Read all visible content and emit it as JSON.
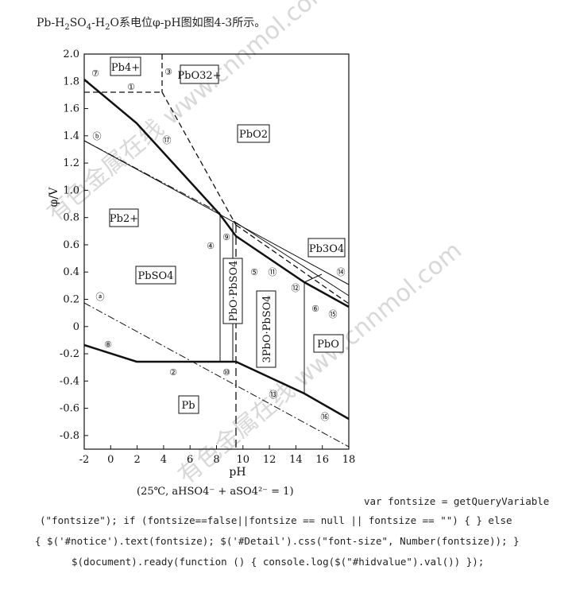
{
  "caption": {
    "parts": [
      "Pb-H",
      "2",
      "SO",
      "4",
      "-H",
      "2",
      "O系电位φ-pH图如图4-3所示。"
    ]
  },
  "chart_data": {
    "type": "diagram",
    "xlabel": "pH",
    "ylabel": "φ/V",
    "xlim": [
      -2,
      18
    ],
    "ylim": [
      -0.9,
      2.0
    ],
    "x_ticks": [
      "-2",
      "0",
      "2",
      "4",
      "6",
      "8",
      "10",
      "12",
      "14",
      "16",
      "18"
    ],
    "y_ticks": [
      "2.0",
      "1.8",
      "1.6",
      "1.4",
      "1.2",
      "1.0",
      "0.8",
      "0.6",
      "0.4",
      "0.2",
      "0",
      "-0.2",
      "-0.4",
      "-0.6",
      "-0.8"
    ],
    "region_labels": {
      "pb4": "Pb4+",
      "pbo3": "PbO32+",
      "pbo2": "PbO2",
      "pb2": "Pb2+",
      "pbso4": "PbSO4",
      "pbo_pbso4": "PbO·PbSO4",
      "tripbo_pbso4": "3PbO·PbSO4",
      "pb3o4": "Pb3O4",
      "pbo": "PbO",
      "pb": "Pb"
    },
    "line_numbers": [
      "①",
      "②",
      "③",
      "④",
      "⑤",
      "⑥",
      "⑦",
      "⑧",
      "⑨",
      "⑩",
      "⑪",
      "⑫",
      "⑬",
      "⑭",
      "⑮",
      "⑯",
      "⑰"
    ],
    "line_letters": [
      "ⓐ",
      "ⓑ"
    ],
    "conditions": "(25℃, aHSO4⁻ + aSO4²⁻ = 1)",
    "watermark": "有色金属在线 www.cnnmol.com"
  },
  "code_lines": [
    "var fontsize = getQueryVariable",
    "(\"fontsize\"); if (fontsize==false||fontsize == null || fontsize == \"\") { } else",
    "{ $('#notice').text(fontsize); $('#Detail').css(\"font-size\", Number(fontsize)); }",
    "$(document).ready(function () { console.log($(\"#hidvalue\").val()) });"
  ]
}
